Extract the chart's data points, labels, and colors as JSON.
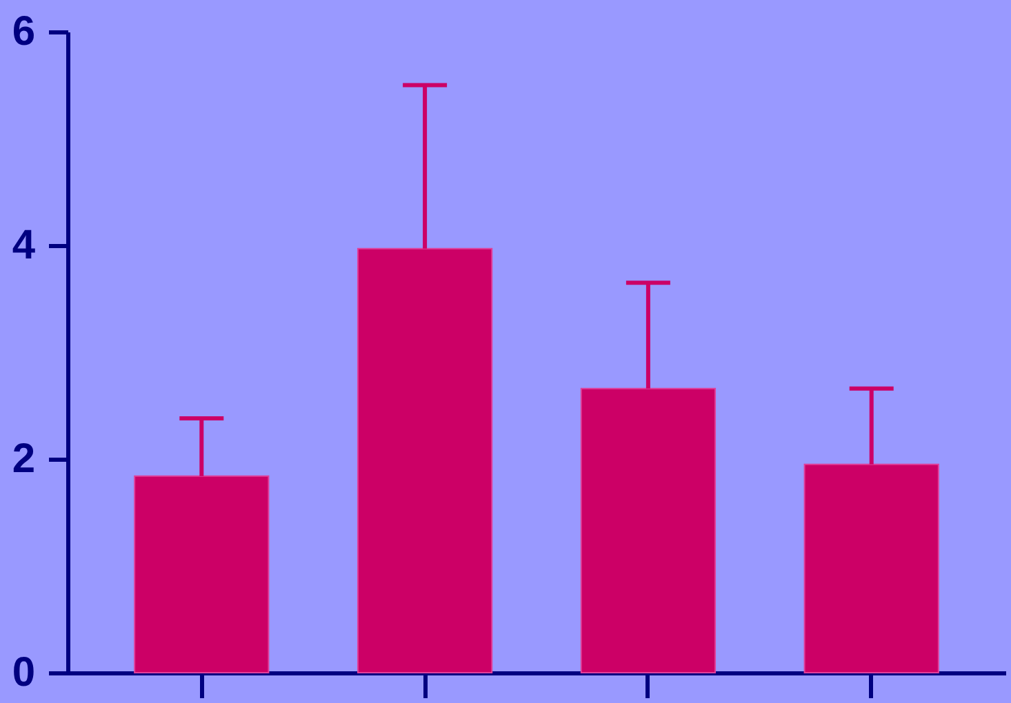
{
  "chart_data": {
    "type": "bar",
    "categories": [
      null,
      null,
      null,
      null
    ],
    "values": [
      1.84,
      3.97,
      2.66,
      1.95
    ],
    "errors": [
      [
        1.84,
        2.38
      ],
      [
        3.97,
        5.5
      ],
      [
        2.66,
        3.65
      ],
      [
        1.95,
        2.66
      ]
    ],
    "color": "#cc0066",
    "ylim": [
      0,
      6
    ],
    "yticks": [
      0,
      2,
      4,
      6
    ],
    "grid": false
  }
}
